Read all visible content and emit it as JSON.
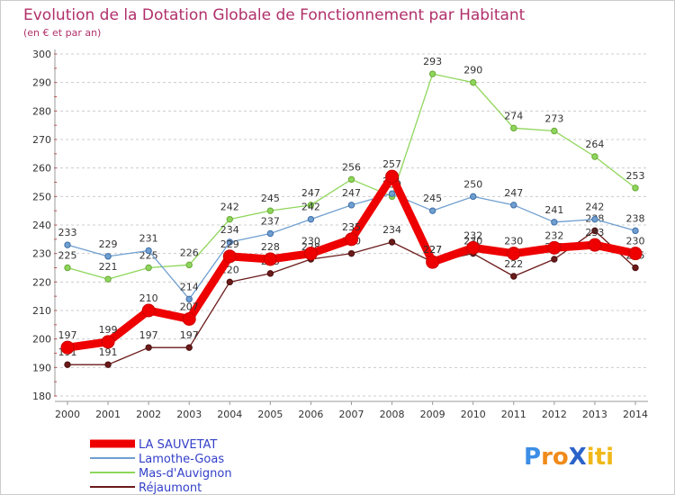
{
  "chart_data": {
    "type": "line",
    "title": "Evolution de la Dotation Globale de Fonctionnement par Habitant",
    "subtitle": "(en € et par an)",
    "xlabel": "",
    "ylabel": "",
    "x": [
      "2000",
      "2001",
      "2002",
      "2003",
      "2004",
      "2005",
      "2006",
      "2007",
      "2008",
      "2009",
      "2010",
      "2011",
      "2012",
      "2013",
      "2014"
    ],
    "ylim": [
      180,
      300
    ],
    "yticks": [
      180,
      190,
      200,
      210,
      220,
      230,
      240,
      250,
      260,
      270,
      280,
      290,
      300
    ],
    "grid": "horizontal-dashed",
    "legend_position": "bottom-left",
    "series": [
      {
        "name": "Réjaumont",
        "color": "#6b1a1a",
        "values": [
          191,
          191,
          197,
          197,
          220,
          223,
          228,
          230,
          234,
          227,
          230,
          222,
          228,
          238,
          225
        ]
      },
      {
        "name": "Mas-d'Auvignon",
        "color": "#8ed65a",
        "values": [
          225,
          221,
          225,
          226,
          242,
          245,
          247,
          256,
          250,
          293,
          290,
          274,
          273,
          264,
          253
        ]
      },
      {
        "name": "Lamothe-Goas",
        "color": "#6f9fd0",
        "values": [
          233,
          229,
          231,
          214,
          234,
          237,
          242,
          247,
          251,
          245,
          250,
          247,
          241,
          242,
          238
        ]
      },
      {
        "name": "LA SAUVETAT",
        "color": "#ee0000",
        "values": [
          197,
          199,
          210,
          207,
          229,
          228,
          230,
          235,
          257,
          227,
          232,
          230,
          232,
          233,
          230
        ]
      }
    ],
    "legend_order": [
      "LA SAUVETAT",
      "Lamothe-Goas",
      "Mas-d'Auvignon",
      "Réjaumont"
    ]
  },
  "logo": {
    "text": "ProXiti"
  }
}
